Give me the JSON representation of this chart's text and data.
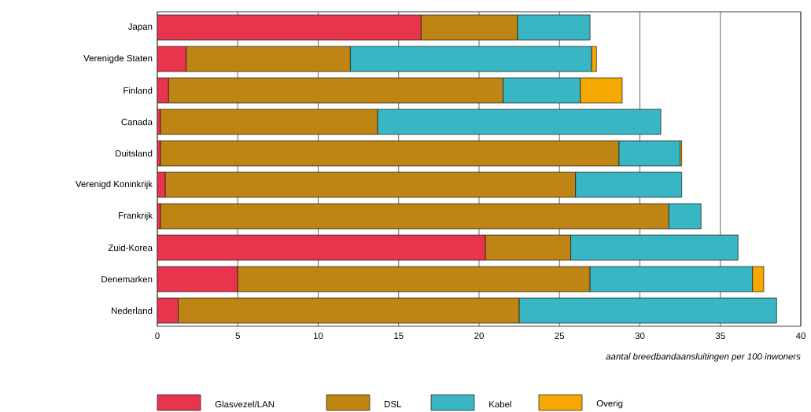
{
  "chart_data": {
    "type": "bar",
    "orientation": "horizontal",
    "stacked": true,
    "categories": [
      "Japan",
      "Verenigde Staten",
      "Finland",
      "Canada",
      "Duitsland",
      "Verenigd Koninkrijk",
      "Frankrijk",
      "Zuid-Korea",
      "Denemarken",
      "Nederland"
    ],
    "series": [
      {
        "name": "Glasvezel/LAN",
        "color": "#e8354e",
        "values": [
          16.4,
          1.8,
          0.7,
          0.2,
          0.2,
          0.5,
          0.2,
          20.4,
          5.0,
          1.3
        ]
      },
      {
        "name": "DSL",
        "color": "#be8514",
        "values": [
          6.0,
          10.2,
          20.8,
          13.5,
          28.5,
          25.5,
          31.6,
          5.3,
          21.9,
          21.2
        ]
      },
      {
        "name": "Kabel",
        "color": "#38b6c3",
        "values": [
          4.5,
          15.0,
          4.8,
          17.6,
          3.8,
          6.6,
          2.0,
          10.4,
          10.1,
          16.0
        ]
      },
      {
        "name": "Overig",
        "color": "#f5a800",
        "values": [
          null,
          0.3,
          2.6,
          null,
          0.1,
          null,
          null,
          null,
          0.7,
          null
        ]
      }
    ],
    "xlabel": "aantal breedbandaansluitingen per 100 inwoners",
    "xlim": [
      0,
      40
    ],
    "xticks": [
      0,
      5,
      10,
      15,
      20,
      25,
      30,
      35,
      40
    ],
    "grid": "x",
    "legend": "bottom"
  }
}
